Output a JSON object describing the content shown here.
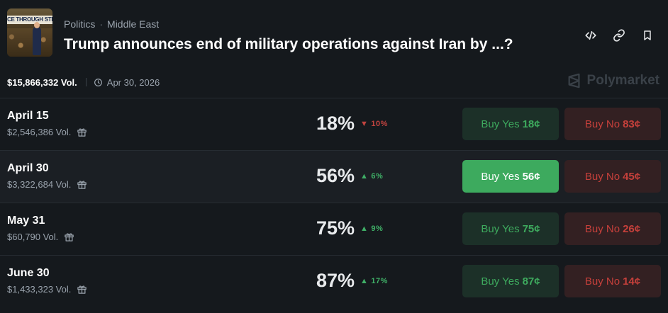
{
  "header": {
    "breadcrumb": [
      "Politics",
      "Middle East"
    ],
    "breadcrumb_separator": "·",
    "title": "Trump announces end of military operations against Iran by ...?",
    "thumbnail_banner_text": "CE THROUGH STRENG"
  },
  "meta": {
    "total_volume": "$15,866,332 Vol.",
    "end_date": "Apr 30, 2026"
  },
  "brand": {
    "name": "Polymarket"
  },
  "icons": {
    "embed": "code-icon",
    "link": "link-icon",
    "bookmark": "bookmark-icon",
    "clock": "clock-icon",
    "gift": "gift-icon",
    "logo": "polymarket-logo-icon"
  },
  "colors": {
    "background": "#15191d",
    "yes_green": "#3eaa5e",
    "no_red": "#c6403b",
    "up": "#3fae66",
    "down": "#c0433f"
  },
  "rows": [
    {
      "date": "April 15",
      "volume": "$2,546,386 Vol.",
      "probability": "18%",
      "change": "10%",
      "direction": "down",
      "buy_yes_label": "Buy Yes",
      "buy_yes_price": "18¢",
      "buy_no_label": "Buy No",
      "buy_no_price": "83¢"
    },
    {
      "date": "April 30",
      "volume": "$3,322,684 Vol.",
      "probability": "56%",
      "change": "6%",
      "direction": "up",
      "buy_yes_label": "Buy Yes",
      "buy_yes_price": "56¢",
      "buy_no_label": "Buy No",
      "buy_no_price": "45¢"
    },
    {
      "date": "May 31",
      "volume": "$60,790 Vol.",
      "probability": "75%",
      "change": "9%",
      "direction": "up",
      "buy_yes_label": "Buy Yes",
      "buy_yes_price": "75¢",
      "buy_no_label": "Buy No",
      "buy_no_price": "26¢"
    },
    {
      "date": "June 30",
      "volume": "$1,433,323 Vol.",
      "probability": "87%",
      "change": "17%",
      "direction": "up",
      "buy_yes_label": "Buy Yes",
      "buy_yes_price": "87¢",
      "buy_no_label": "Buy No",
      "buy_no_price": "14¢"
    }
  ]
}
